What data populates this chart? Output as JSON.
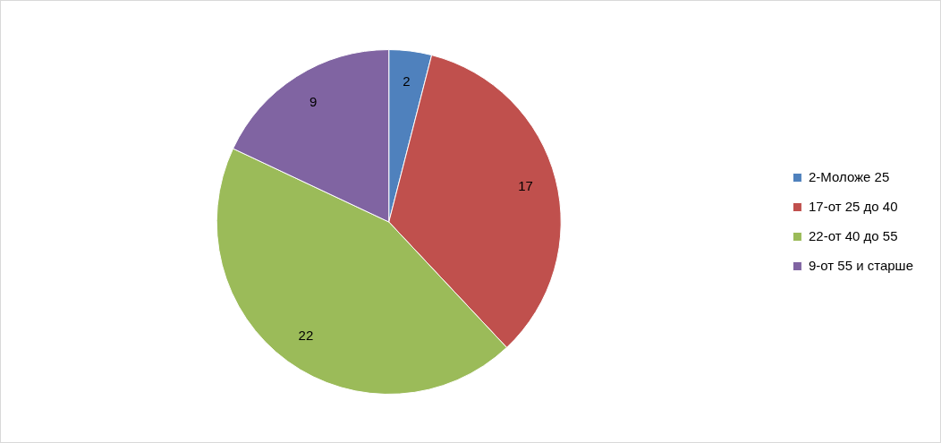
{
  "chart_data": {
    "type": "pie",
    "categories": [
      "2-Моложе 25",
      "17-от 25 до 40",
      "22-от 40 до 55",
      "9-от 55 и старше"
    ],
    "values": [
      2,
      17,
      22,
      9
    ],
    "colors": [
      "#4f81bd",
      "#c0504d",
      "#9bbb59",
      "#8064a2"
    ],
    "data_labels": true,
    "legend": "right"
  }
}
